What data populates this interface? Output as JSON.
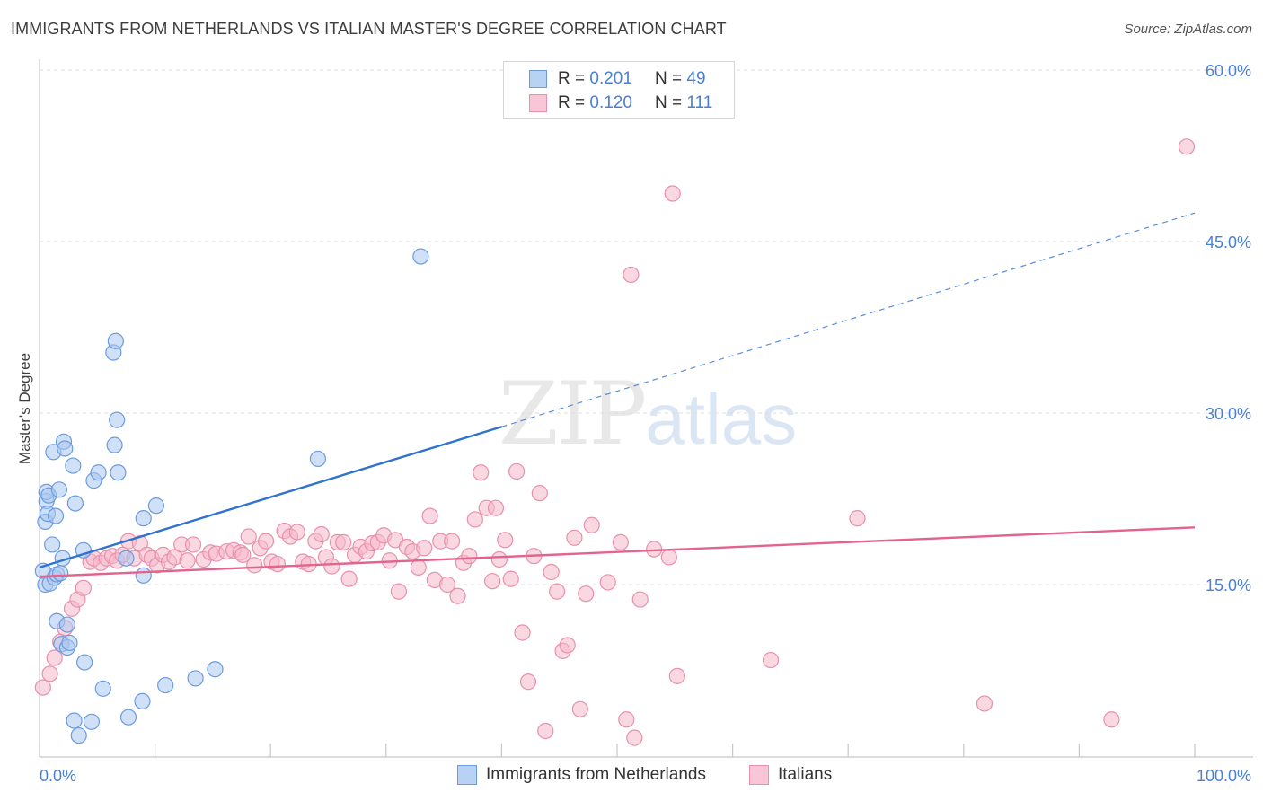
{
  "title": "IMMIGRANTS FROM NETHERLANDS VS ITALIAN MASTER'S DEGREE CORRELATION CHART",
  "source": "Source: ZipAtlas.com",
  "watermark": {
    "zip": "ZIP",
    "atlas": "atlas"
  },
  "legend_top": [
    {
      "r_label": "R = ",
      "r_value": "0.201",
      "n_label": "N = ",
      "n_value": "49"
    },
    {
      "r_label": "R = ",
      "r_value": "0.120",
      "n_label": "N = ",
      "n_value": "111"
    }
  ],
  "colors": {
    "blue_fill": "#a9c8f0",
    "blue_stroke": "#6b9be0",
    "blue_line": "#2f72d0",
    "pink_fill": "#f5b8cb",
    "pink_stroke": "#e890ac",
    "pink_line": "#e2648e",
    "tick_text": "#4a80d4",
    "grid": "#dedede"
  },
  "chart_data": {
    "type": "scatter",
    "title": "IMMIGRANTS FROM NETHERLANDS VS ITALIAN MASTER'S DEGREE CORRELATION CHART",
    "xlabel": "",
    "ylabel": "Master's Degree",
    "xlim": [
      0,
      100
    ],
    "ylim": [
      0,
      60
    ],
    "x_tick_labels": [
      {
        "value": 0,
        "label": "0.0%"
      },
      {
        "value": 100,
        "label": "100.0%"
      }
    ],
    "y_tick_labels": [
      {
        "value": 15,
        "label": "15.0%"
      },
      {
        "value": 30,
        "label": "30.0%"
      },
      {
        "value": 45,
        "label": "45.0%"
      },
      {
        "value": 60,
        "label": "60.0%"
      }
    ],
    "grid": "horizontal dashed",
    "legend_placement": "bottom-center",
    "series": [
      {
        "name": "Immigrants from Netherlands",
        "r": 0.201,
        "n": 49,
        "trend": {
          "x0": 0,
          "y0": 16.5,
          "x1": 40,
          "y1": 28.8,
          "dashed_to_x": 100,
          "dashed_to_y": 47.5
        },
        "points": [
          [
            0.3,
            16.2
          ],
          [
            0.5,
            15.0
          ],
          [
            0.5,
            20.5
          ],
          [
            0.6,
            22.3
          ],
          [
            0.6,
            23.1
          ],
          [
            0.7,
            21.2
          ],
          [
            0.8,
            22.8
          ],
          [
            0.9,
            15.1
          ],
          [
            1.1,
            18.5
          ],
          [
            1.2,
            26.6
          ],
          [
            1.3,
            15.6
          ],
          [
            1.4,
            21.0
          ],
          [
            1.5,
            11.8
          ],
          [
            1.5,
            15.9
          ],
          [
            1.7,
            23.3
          ],
          [
            1.8,
            16.0
          ],
          [
            1.9,
            9.8
          ],
          [
            2.0,
            17.3
          ],
          [
            2.1,
            27.5
          ],
          [
            2.2,
            26.9
          ],
          [
            2.4,
            11.5
          ],
          [
            2.4,
            9.5
          ],
          [
            2.6,
            9.9
          ],
          [
            2.9,
            25.4
          ],
          [
            3.0,
            3.1
          ],
          [
            3.1,
            22.1
          ],
          [
            3.4,
            1.8
          ],
          [
            3.8,
            18.0
          ],
          [
            3.9,
            8.2
          ],
          [
            4.5,
            3.0
          ],
          [
            4.7,
            24.1
          ],
          [
            5.1,
            24.8
          ],
          [
            5.5,
            5.9
          ],
          [
            6.4,
            35.3
          ],
          [
            6.5,
            27.2
          ],
          [
            6.6,
            36.3
          ],
          [
            6.7,
            29.4
          ],
          [
            6.8,
            24.8
          ],
          [
            7.5,
            17.3
          ],
          [
            7.7,
            3.4
          ],
          [
            8.9,
            4.8
          ],
          [
            9.0,
            20.8
          ],
          [
            9.0,
            15.8
          ],
          [
            10.1,
            21.9
          ],
          [
            10.9,
            6.2
          ],
          [
            13.5,
            6.8
          ],
          [
            15.2,
            7.6
          ],
          [
            24.1,
            26.0
          ],
          [
            33.0,
            43.7
          ]
        ]
      },
      {
        "name": "Italians",
        "r": 0.12,
        "n": 111,
        "trend": {
          "x0": 0,
          "y0": 15.7,
          "x1": 100,
          "y1": 20.0
        },
        "points": [
          [
            0.3,
            6.0
          ],
          [
            0.9,
            7.2
          ],
          [
            1.3,
            8.6
          ],
          [
            1.8,
            10.0
          ],
          [
            2.2,
            11.2
          ],
          [
            2.8,
            12.9
          ],
          [
            3.3,
            13.7
          ],
          [
            3.8,
            14.7
          ],
          [
            4.4,
            17.0
          ],
          [
            4.7,
            17.3
          ],
          [
            5.3,
            16.9
          ],
          [
            5.8,
            17.3
          ],
          [
            6.3,
            17.5
          ],
          [
            6.7,
            17.1
          ],
          [
            7.2,
            17.6
          ],
          [
            7.7,
            18.8
          ],
          [
            8.2,
            17.3
          ],
          [
            8.7,
            18.6
          ],
          [
            9.3,
            17.6
          ],
          [
            9.7,
            17.3
          ],
          [
            10.2,
            16.7
          ],
          [
            10.7,
            17.6
          ],
          [
            11.2,
            17.0
          ],
          [
            11.7,
            17.4
          ],
          [
            12.3,
            18.5
          ],
          [
            12.8,
            17.1
          ],
          [
            13.3,
            18.5
          ],
          [
            14.2,
            17.2
          ],
          [
            14.8,
            17.8
          ],
          [
            15.3,
            17.7
          ],
          [
            16.2,
            17.9
          ],
          [
            16.8,
            18.0
          ],
          [
            17.4,
            17.8
          ],
          [
            17.6,
            17.6
          ],
          [
            18.1,
            19.2
          ],
          [
            18.6,
            16.7
          ],
          [
            19.1,
            18.2
          ],
          [
            19.6,
            18.8
          ],
          [
            20.1,
            17.0
          ],
          [
            20.6,
            16.8
          ],
          [
            21.2,
            19.7
          ],
          [
            21.7,
            19.2
          ],
          [
            22.3,
            19.6
          ],
          [
            22.8,
            17.0
          ],
          [
            23.3,
            16.8
          ],
          [
            23.9,
            18.8
          ],
          [
            24.4,
            19.4
          ],
          [
            24.8,
            17.4
          ],
          [
            25.3,
            16.6
          ],
          [
            25.8,
            18.7
          ],
          [
            26.3,
            18.7
          ],
          [
            26.8,
            15.5
          ],
          [
            27.3,
            17.6
          ],
          [
            27.8,
            18.3
          ],
          [
            28.3,
            17.9
          ],
          [
            28.8,
            18.6
          ],
          [
            29.3,
            18.7
          ],
          [
            29.8,
            19.3
          ],
          [
            30.3,
            17.1
          ],
          [
            30.8,
            18.9
          ],
          [
            31.1,
            14.4
          ],
          [
            31.8,
            18.3
          ],
          [
            32.3,
            17.9
          ],
          [
            32.8,
            16.5
          ],
          [
            33.3,
            18.2
          ],
          [
            33.8,
            21.0
          ],
          [
            34.2,
            15.4
          ],
          [
            34.7,
            18.8
          ],
          [
            35.3,
            15.0
          ],
          [
            35.7,
            18.8
          ],
          [
            36.2,
            14.0
          ],
          [
            36.7,
            16.9
          ],
          [
            37.2,
            17.5
          ],
          [
            37.7,
            20.7
          ],
          [
            38.2,
            24.8
          ],
          [
            38.7,
            21.7
          ],
          [
            39.2,
            15.3
          ],
          [
            39.5,
            21.7
          ],
          [
            39.8,
            17.2
          ],
          [
            40.3,
            18.9
          ],
          [
            40.8,
            15.5
          ],
          [
            41.3,
            24.9
          ],
          [
            41.8,
            10.8
          ],
          [
            42.3,
            6.5
          ],
          [
            42.8,
            17.5
          ],
          [
            43.3,
            23.0
          ],
          [
            43.8,
            2.2
          ],
          [
            44.3,
            16.1
          ],
          [
            44.8,
            14.4
          ],
          [
            45.3,
            9.2
          ],
          [
            45.7,
            9.7
          ],
          [
            46.3,
            19.1
          ],
          [
            46.8,
            4.1
          ],
          [
            47.3,
            14.2
          ],
          [
            47.8,
            20.2
          ],
          [
            49.2,
            15.2
          ],
          [
            50.3,
            18.7
          ],
          [
            50.8,
            3.2
          ],
          [
            51.2,
            42.1
          ],
          [
            51.5,
            1.6
          ],
          [
            52.0,
            13.7
          ],
          [
            53.2,
            18.1
          ],
          [
            54.5,
            17.4
          ],
          [
            54.8,
            49.2
          ],
          [
            55.2,
            7.0
          ],
          [
            63.3,
            8.4
          ],
          [
            70.8,
            20.8
          ],
          [
            81.8,
            4.6
          ],
          [
            92.8,
            3.2
          ],
          [
            99.3,
            53.3
          ]
        ]
      }
    ]
  }
}
